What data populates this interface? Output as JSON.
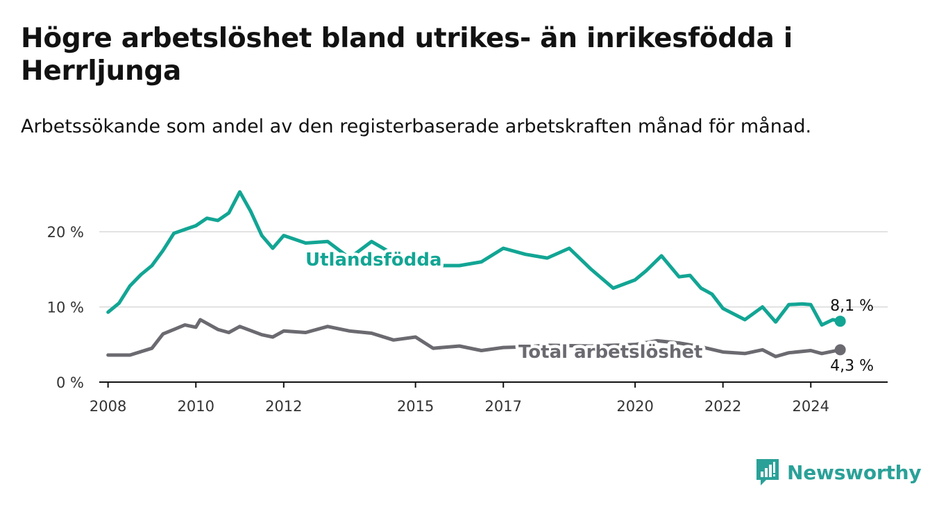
{
  "header": {
    "title": "Högre arbetslöshet bland utrikes- än inrikesfödda i Herrljunga",
    "subtitle": "Arbetssökande som andel av den registerbaserade arbetskraften månad för månad."
  },
  "brand": {
    "name": "Newsworthy",
    "color": "#2aa198",
    "icon": "bar-chart-logo-icon"
  },
  "colors": {
    "foreign": "#12a594",
    "total": "#6b6a70",
    "grid": "#d9d9d9",
    "axis": "#121212"
  },
  "chart_data": {
    "type": "line",
    "y_ticks": [
      {
        "value": 0,
        "label": "0 %"
      },
      {
        "value": 10,
        "label": "10 %"
      },
      {
        "value": 20,
        "label": "20 %"
      }
    ],
    "x_ticks": [
      {
        "value": 2008,
        "label": "2008"
      },
      {
        "value": 2010,
        "label": "2010"
      },
      {
        "value": 2012,
        "label": "2012"
      },
      {
        "value": 2015,
        "label": "2015"
      },
      {
        "value": 2017,
        "label": "2017"
      },
      {
        "value": 2020,
        "label": "2020"
      },
      {
        "value": 2022,
        "label": "2022"
      },
      {
        "value": 2024,
        "label": "2024"
      }
    ],
    "xlim": [
      2007.8,
      2025.75
    ],
    "ylim": [
      0,
      25
    ],
    "grid": true,
    "series": [
      {
        "name": "Utlandsfödda",
        "color": "#12a594",
        "end_label": "8,1 %",
        "points": [
          [
            2008.0,
            9.3
          ],
          [
            2008.25,
            10.5
          ],
          [
            2008.5,
            12.8
          ],
          [
            2008.75,
            14.3
          ],
          [
            2009.0,
            15.5
          ],
          [
            2009.25,
            17.5
          ],
          [
            2009.5,
            19.8
          ],
          [
            2009.75,
            20.3
          ],
          [
            2010.0,
            20.8
          ],
          [
            2010.25,
            21.8
          ],
          [
            2010.5,
            21.5
          ],
          [
            2010.75,
            22.5
          ],
          [
            2011.0,
            25.3
          ],
          [
            2011.25,
            22.7
          ],
          [
            2011.5,
            19.5
          ],
          [
            2011.75,
            17.8
          ],
          [
            2012.0,
            19.5
          ],
          [
            2012.5,
            18.5
          ],
          [
            2013.0,
            18.7
          ],
          [
            2013.5,
            16.5
          ],
          [
            2014.0,
            18.7
          ],
          [
            2014.5,
            17.0
          ],
          [
            2015.0,
            16.3
          ],
          [
            2015.5,
            15.5
          ],
          [
            2016.0,
            15.5
          ],
          [
            2016.5,
            16.0
          ],
          [
            2017.0,
            17.8
          ],
          [
            2017.5,
            17.0
          ],
          [
            2018.0,
            16.5
          ],
          [
            2018.5,
            17.8
          ],
          [
            2019.0,
            15.0
          ],
          [
            2019.5,
            12.5
          ],
          [
            2020.0,
            13.6
          ],
          [
            2020.25,
            14.8
          ],
          [
            2020.6,
            16.8
          ],
          [
            2021.0,
            14.0
          ],
          [
            2021.25,
            14.2
          ],
          [
            2021.5,
            12.5
          ],
          [
            2021.75,
            11.7
          ],
          [
            2022.0,
            9.8
          ],
          [
            2022.5,
            8.3
          ],
          [
            2022.9,
            10.0
          ],
          [
            2023.2,
            8.0
          ],
          [
            2023.5,
            10.3
          ],
          [
            2023.8,
            10.4
          ],
          [
            2024.0,
            10.3
          ],
          [
            2024.25,
            7.6
          ],
          [
            2024.5,
            8.3
          ],
          [
            2024.67,
            8.1
          ]
        ]
      },
      {
        "name": "Total arbetslöshet",
        "color": "#6b6a70",
        "end_label": "4,3 %",
        "points": [
          [
            2008.0,
            3.6
          ],
          [
            2008.5,
            3.6
          ],
          [
            2009.0,
            4.5
          ],
          [
            2009.25,
            6.4
          ],
          [
            2009.75,
            7.6
          ],
          [
            2010.0,
            7.3
          ],
          [
            2010.1,
            8.3
          ],
          [
            2010.5,
            7.0
          ],
          [
            2010.75,
            6.6
          ],
          [
            2011.0,
            7.4
          ],
          [
            2011.5,
            6.3
          ],
          [
            2011.75,
            6.0
          ],
          [
            2012.0,
            6.8
          ],
          [
            2012.5,
            6.6
          ],
          [
            2013.0,
            7.4
          ],
          [
            2013.5,
            6.8
          ],
          [
            2014.0,
            6.5
          ],
          [
            2014.5,
            5.6
          ],
          [
            2015.0,
            6.0
          ],
          [
            2015.4,
            4.5
          ],
          [
            2016.0,
            4.8
          ],
          [
            2016.5,
            4.2
          ],
          [
            2017.0,
            4.6
          ],
          [
            2017.5,
            4.7
          ],
          [
            2018.0,
            4.9
          ],
          [
            2019.0,
            4.8
          ],
          [
            2020.0,
            5.0
          ],
          [
            2020.5,
            5.5
          ],
          [
            2021.0,
            5.2
          ],
          [
            2021.5,
            4.7
          ],
          [
            2022.0,
            4.0
          ],
          [
            2022.5,
            3.8
          ],
          [
            2022.9,
            4.3
          ],
          [
            2023.2,
            3.4
          ],
          [
            2023.5,
            3.9
          ],
          [
            2024.0,
            4.2
          ],
          [
            2024.25,
            3.8
          ],
          [
            2024.67,
            4.3
          ]
        ]
      }
    ]
  }
}
